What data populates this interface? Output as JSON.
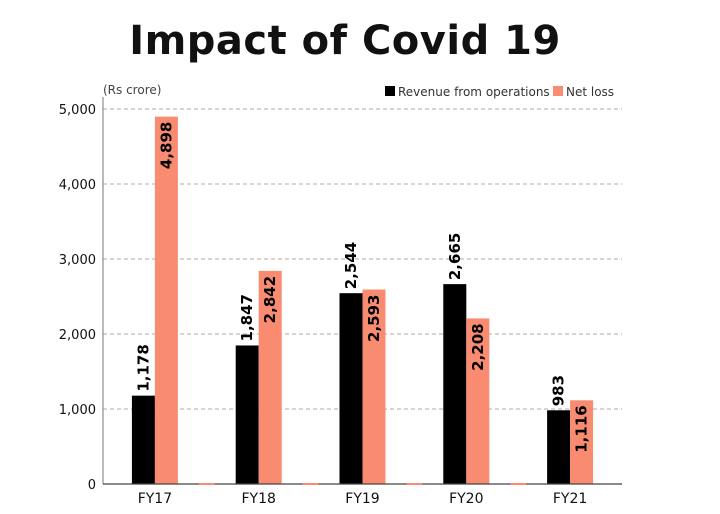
{
  "chart_data": {
    "type": "bar",
    "title": "Impact of Covid 19",
    "unit_label": "(Rs crore)",
    "categories": [
      "FY17",
      "FY18",
      "FY19",
      "FY20",
      "FY21"
    ],
    "series": [
      {
        "name": "Revenue from operations",
        "color": "#000000",
        "values": [
          1178,
          1847,
          2544,
          2665,
          983
        ],
        "labels": [
          "1,178",
          "1,847",
          "2,544",
          "2,665",
          "983"
        ]
      },
      {
        "name": "Net loss",
        "color": "#f88b70",
        "values": [
          4898,
          2842,
          2593,
          2208,
          1116
        ],
        "labels": [
          "4,898",
          "2,842",
          "2,593",
          "2,208",
          "1,116"
        ]
      }
    ],
    "ylim": [
      0,
      5000
    ],
    "yticks": [
      0,
      1000,
      2000,
      3000,
      4000,
      5000
    ],
    "ytick_labels": [
      "0",
      "1,000",
      "2,000",
      "3,000",
      "4,000",
      "5,000"
    ],
    "grid": true,
    "legend": "top-right",
    "xlabel": "",
    "ylabel": ""
  }
}
